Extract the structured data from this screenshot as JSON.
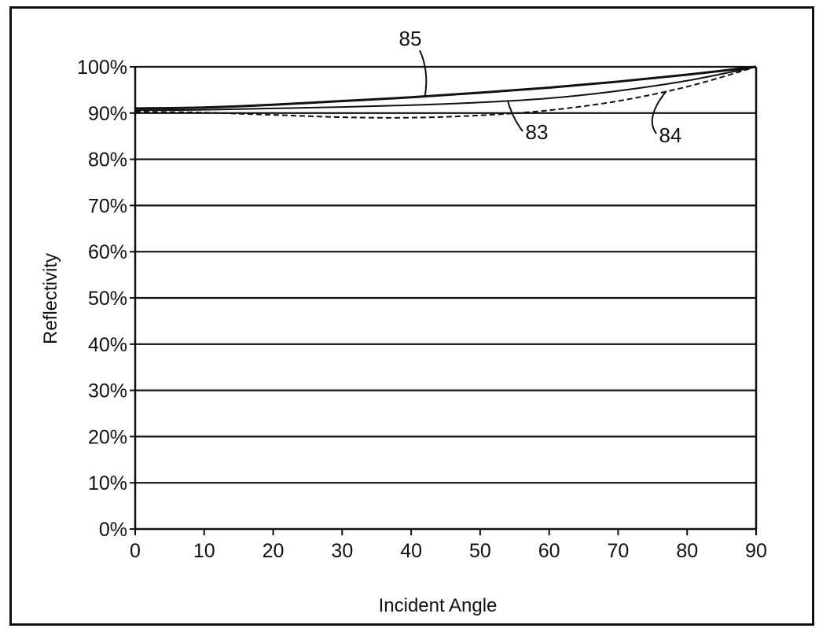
{
  "chart_data": {
    "type": "line",
    "title": "",
    "xlabel": "Incident Angle",
    "ylabel": "Reflectivity",
    "xlim": [
      0,
      90
    ],
    "ylim": [
      0,
      100
    ],
    "x_ticks": [
      "0",
      "10",
      "20",
      "30",
      "40",
      "50",
      "60",
      "70",
      "80",
      "90"
    ],
    "y_ticks": [
      "0%",
      "10%",
      "20%",
      "30%",
      "40%",
      "50%",
      "60%",
      "70%",
      "80%",
      "90%",
      "100%"
    ],
    "grid": "horizontal",
    "series": [
      {
        "name": "85",
        "style": "solid",
        "x": [
          0,
          10,
          20,
          30,
          40,
          50,
          60,
          70,
          80,
          90
        ],
        "y": [
          91,
          91.2,
          91.8,
          92.6,
          93.4,
          94.4,
          95.5,
          96.8,
          98.3,
          100
        ]
      },
      {
        "name": "83",
        "style": "solid",
        "x": [
          0,
          10,
          20,
          30,
          40,
          50,
          60,
          70,
          80,
          90
        ],
        "y": [
          90.6,
          90.7,
          91,
          91.3,
          91.7,
          92.3,
          93.2,
          94.8,
          97,
          100
        ]
      },
      {
        "name": "84",
        "style": "dashed",
        "x": [
          0,
          10,
          20,
          30,
          40,
          50,
          60,
          70,
          80,
          90
        ],
        "y": [
          90.3,
          90.1,
          89.6,
          89.1,
          89,
          89.5,
          90.6,
          92.6,
          95.7,
          100
        ]
      }
    ]
  }
}
